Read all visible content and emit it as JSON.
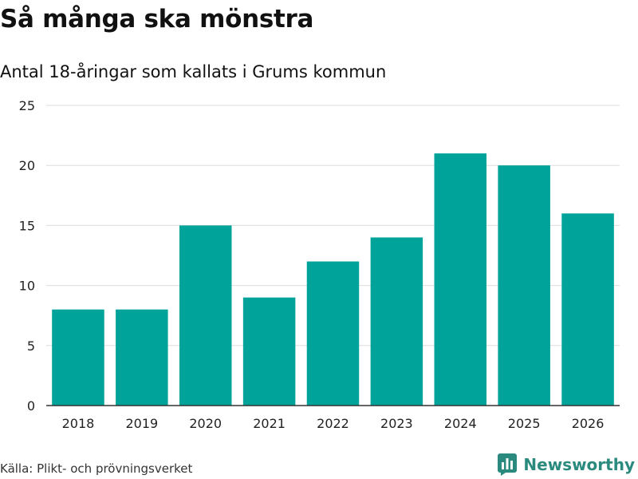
{
  "header": {
    "title": "Så många ska mönstra",
    "subtitle": "Antal 18-åringar som kallats i Grums kommun"
  },
  "footer": {
    "source": "Källa: Plikt- och prövningsverket",
    "brand": "Newsworthy",
    "brand_icon": "bar-chart-logo-icon"
  },
  "colors": {
    "bar": "#00a39a",
    "grid": "#dddddd",
    "axis": "#333333",
    "tick_text": "#222222",
    "brand": "#2b8a7e"
  },
  "chart_data": {
    "type": "bar",
    "title": "Så många ska mönstra",
    "subtitle": "Antal 18-åringar som kallats i Grums kommun",
    "xlabel": "",
    "ylabel": "",
    "categories": [
      "2018",
      "2019",
      "2020",
      "2021",
      "2022",
      "2023",
      "2024",
      "2025",
      "2026"
    ],
    "values": [
      8,
      8,
      15,
      9,
      12,
      14,
      21,
      20,
      16
    ],
    "ylim": [
      0,
      25
    ],
    "yticks": [
      0,
      5,
      10,
      15,
      20,
      25
    ],
    "grid": true,
    "legend": "none"
  }
}
